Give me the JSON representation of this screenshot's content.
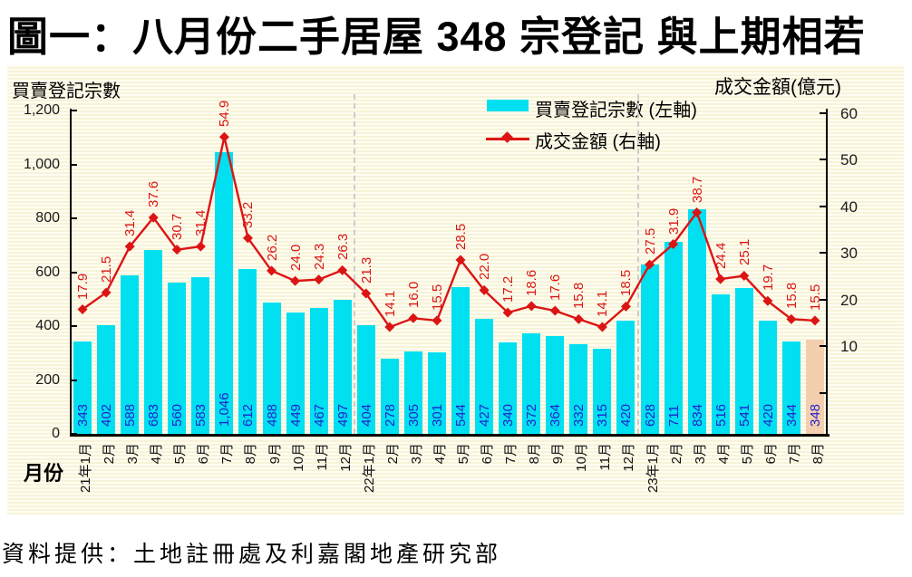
{
  "title": "圖一：八月份二手居屋 348 宗登記  與上期相若",
  "footer": "資料提供：土地註冊處及利嘉閣地產研究部",
  "chart": {
    "left_axis_title": "買賣登記宗數",
    "right_axis_title": "成交金額(億元)",
    "x_axis_title": "月份",
    "legend": [
      {
        "label": "買賣登記宗數 (左軸)",
        "marker": "bar-swatch"
      },
      {
        "label": "成交金額 (右軸)",
        "marker": "line-diamond"
      }
    ],
    "colors": {
      "bar": "#00e0f0",
      "bar_highlight": "#f3cfae",
      "line": "#dc1414",
      "bar_label": "#2222cd",
      "point_label": "#dc1414",
      "separator": "#cccccc"
    }
  },
  "chart_data": {
    "type": "combo_bar_line",
    "title": "圖一：八月份二手居屋 348 宗登記  與上期相若",
    "categories": [
      "21年1月",
      "2月",
      "3月",
      "4月",
      "5月",
      "6月",
      "7月",
      "8月",
      "9月",
      "10月",
      "11月",
      "12月",
      "22年1月",
      "2月",
      "3月",
      "4月",
      "5月",
      "6月",
      "7月",
      "8月",
      "9月",
      "10月",
      "11月",
      "12月",
      "23年1月",
      "2月",
      "3月",
      "4月",
      "5月",
      "6月",
      "7月",
      "8月"
    ],
    "series": [
      {
        "name": "買賣登記宗數 (左軸)",
        "type": "bar",
        "axis": "left",
        "values": [
          343,
          402,
          588,
          683,
          560,
          583,
          1046,
          612,
          488,
          449,
          467,
          497,
          404,
          278,
          305,
          301,
          544,
          427,
          340,
          372,
          364,
          332,
          315,
          420,
          628,
          711,
          834,
          516,
          541,
          420,
          344,
          348
        ],
        "labels": [
          "343",
          "402",
          "588",
          "683",
          "560",
          "583",
          "1,046",
          "612",
          "488",
          "449",
          "467",
          "497",
          "404",
          "278",
          "305",
          "301",
          "544",
          "427",
          "340",
          "372",
          "364",
          "332",
          "315",
          "420",
          "628",
          "711",
          "834",
          "516",
          "541",
          "420",
          "344",
          "348"
        ],
        "highlight_index": 31
      },
      {
        "name": "成交金額 (右軸)",
        "type": "line",
        "axis": "right",
        "values": [
          17.9,
          21.5,
          31.4,
          37.6,
          30.7,
          31.4,
          54.9,
          33.2,
          26.2,
          24.0,
          24.3,
          26.3,
          21.3,
          14.1,
          16.0,
          15.5,
          28.5,
          22.0,
          17.2,
          18.6,
          17.6,
          15.8,
          14.1,
          18.5,
          27.5,
          31.9,
          38.7,
          24.4,
          25.1,
          19.7,
          15.8,
          15.5
        ],
        "labels": [
          "17.9",
          "21.5",
          "31.4",
          "37.6",
          "30.7",
          "31.4",
          "54.9",
          "33.2",
          "26.2",
          "24.0",
          "24.3",
          "26.3",
          "21.3",
          "14.1",
          "16.0",
          "15.5",
          "28.5",
          "22.0",
          "17.2",
          "18.6",
          "17.6",
          "15.8",
          "14.1",
          "18.5",
          "27.5",
          "31.9",
          "38.7",
          "24.4",
          "25.1",
          "19.7",
          "15.8",
          "15.5"
        ]
      }
    ],
    "left_axis": {
      "min": 0,
      "max": 1200,
      "tick_step": 200,
      "tick_labels": [
        "0",
        "200",
        "400",
        "600",
        "800",
        "1,000",
        "1,200"
      ]
    },
    "right_axis": {
      "ticks": [
        10,
        20,
        30,
        40,
        50,
        60
      ],
      "tick_labels": [
        "10",
        "20",
        "30",
        "40",
        "50",
        "60"
      ],
      "unlabeled_tick": 0
    },
    "year_separators_after_index": [
      11,
      23
    ],
    "grid": false,
    "legend_position": "top-center"
  }
}
